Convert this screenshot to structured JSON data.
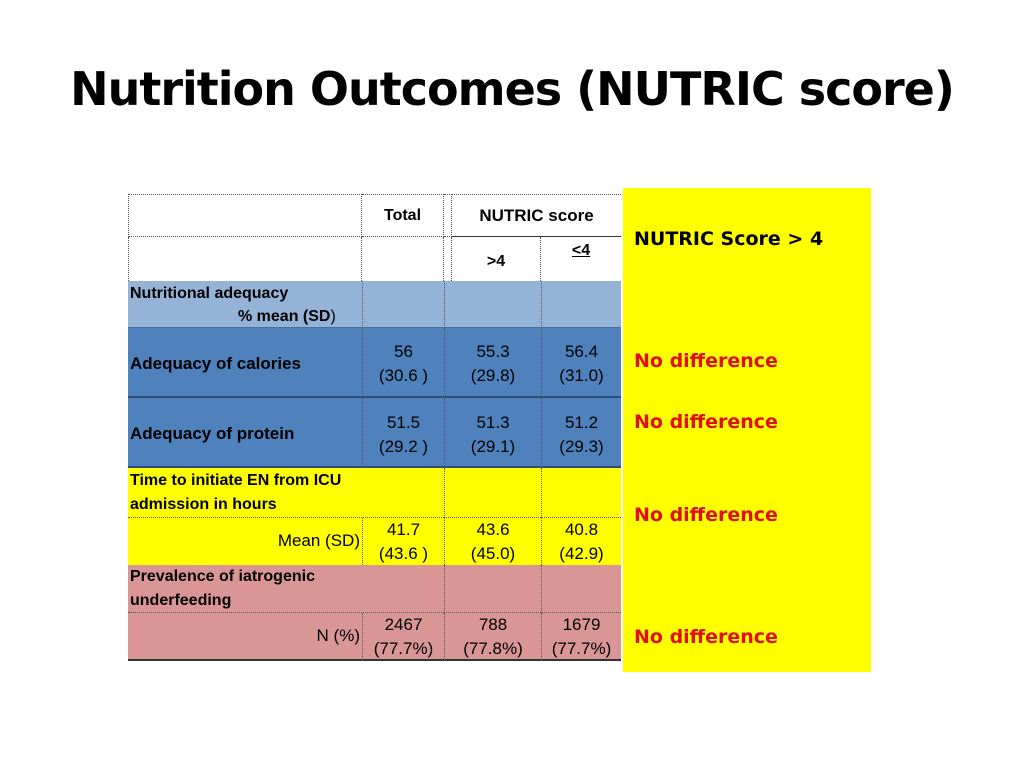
{
  "title": "Nutrition Outcomes (NUTRIC score)",
  "table": {
    "header": {
      "total": "Total",
      "nutric": "NUTRIC score",
      "gt4": ">4",
      "le4": "<4"
    },
    "section1": {
      "label": "Nutritional adequacy",
      "sub_pre": "% mean (",
      "sub_bold": "SD",
      "sub_post": ")"
    },
    "rows1": [
      {
        "label": "Adequacy of calories",
        "total": [
          "56",
          "(30.6 )"
        ],
        "gt4": [
          "55.3",
          "(29.8)"
        ],
        "le4": [
          "56.4",
          "(31.0)"
        ]
      },
      {
        "label": "Adequacy of protein",
        "total": [
          "51.5",
          "(29.2 )"
        ],
        "gt4": [
          "51.3",
          "(29.1)"
        ],
        "le4": [
          "51.2",
          "(29.3)"
        ]
      }
    ],
    "section2": {
      "label_line1": "Time to initiate EN from ICU",
      "label_line2": "admission in hours",
      "sub": "Mean (SD)",
      "total": [
        "41.7",
        "(43.6 )"
      ],
      "gt4": [
        "43.6",
        "(45.0)"
      ],
      "le4": [
        "40.8",
        "(42.9)"
      ]
    },
    "section3": {
      "label_line1": "Prevalence of iatrogenic",
      "label_line2": "underfeeding",
      "sub": "N (%)",
      "total": [
        "2467",
        "(77.7%)"
      ],
      "gt4": [
        "788",
        "(77.8%)"
      ],
      "le4": [
        "1679",
        "(77.7%)"
      ]
    }
  },
  "panel": {
    "heading": "NUTRIC Score > 4",
    "results": [
      "No difference",
      "No difference",
      "No difference",
      "No difference"
    ]
  }
}
